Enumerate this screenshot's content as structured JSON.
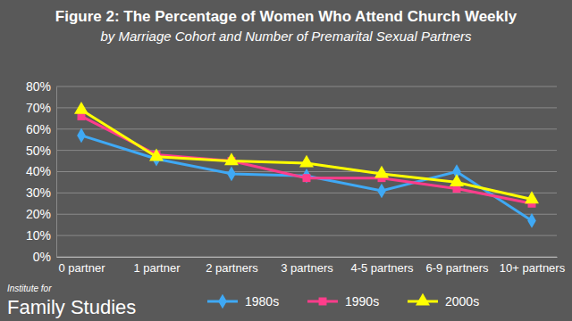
{
  "chart_data": {
    "type": "line",
    "title": "Figure 2: The Percentage of Women Who Attend Church Weekly",
    "subtitle": "by Marriage Cohort and Number of Premarital Sexual Partners",
    "annotations": [
      "Institute for",
      "Family Studies"
    ],
    "categories": [
      "0 partner",
      "1 partner",
      "2 partners",
      "3 partners",
      "4-5 partners",
      "6-9 partners",
      "10+ partners"
    ],
    "series": [
      {
        "name": "1980s",
        "color": "#3fa9f5",
        "marker": "diamond",
        "values": [
          57,
          46,
          39,
          38,
          31,
          40,
          17
        ]
      },
      {
        "name": "1990s",
        "color": "#ff3d8b",
        "marker": "square",
        "values": [
          66,
          48,
          45,
          37,
          37,
          32,
          25
        ]
      },
      {
        "name": "2000s",
        "color": "#ffff00",
        "marker": "triangle",
        "values": [
          69,
          47,
          45,
          44,
          39,
          35,
          27
        ]
      }
    ],
    "ylim": [
      0,
      80
    ],
    "yticks": [
      {
        "value": 0,
        "label": "0%"
      },
      {
        "value": 10,
        "label": "10%"
      },
      {
        "value": 20,
        "label": "20%"
      },
      {
        "value": 30,
        "label": "30%"
      },
      {
        "value": 40,
        "label": "40%"
      },
      {
        "value": 50,
        "label": "50%"
      },
      {
        "value": 60,
        "label": "60%"
      },
      {
        "value": 70,
        "label": "70%"
      },
      {
        "value": 80,
        "label": "80%"
      }
    ],
    "grid": true,
    "legend": "bottom"
  }
}
